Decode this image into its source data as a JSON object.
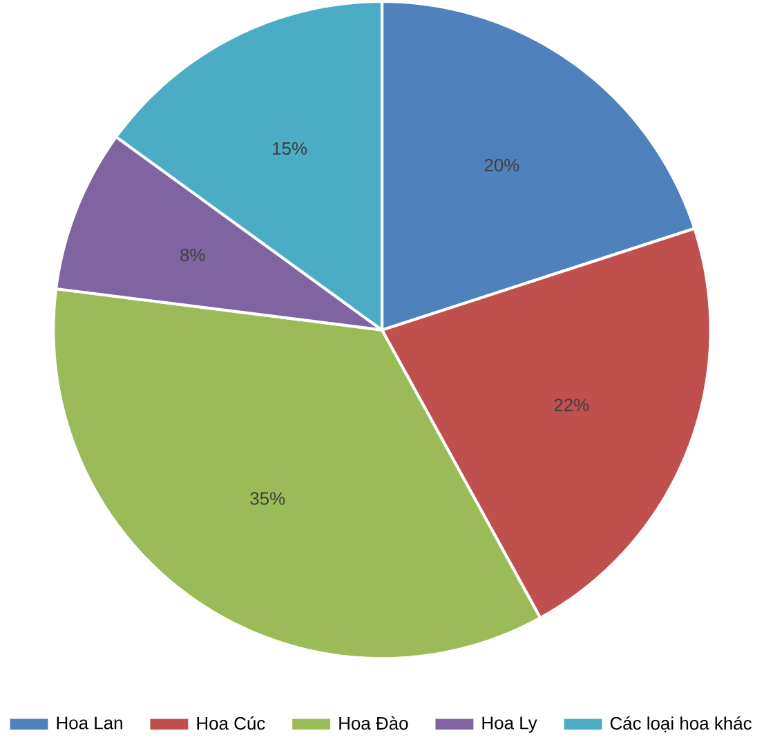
{
  "chart_data": {
    "type": "pie",
    "categories": [
      "Hoa Lan",
      "Hoa Cúc",
      "Hoa Đào",
      "Hoa Ly",
      "Các loại hoa khác"
    ],
    "values": [
      20,
      22,
      35,
      8,
      15
    ],
    "colors": [
      "#4f81bd",
      "#c0504d",
      "#9bbb59",
      "#8064a2",
      "#4bacc6"
    ],
    "value_labels": [
      "20%",
      "22%",
      "35%",
      "8%",
      "15%"
    ],
    "legend": "bottom"
  }
}
